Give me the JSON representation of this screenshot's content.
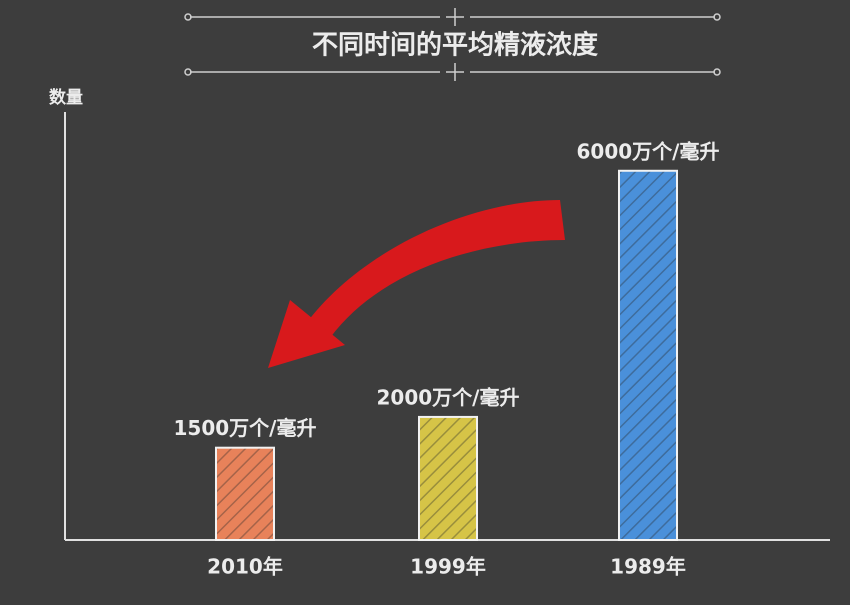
{
  "chart_data": {
    "type": "bar",
    "title": "不同时间的平均精液浓度",
    "y_label": "数量",
    "categories": [
      "2010年",
      "1999年",
      "1989年"
    ],
    "series": [
      {
        "values": [
          1500,
          2000,
          6000
        ],
        "value_labels": [
          "1500万个/毫升",
          "2000万个/毫升",
          "6000万个/毫升"
        ],
        "colors": [
          "#e8825a",
          "#d6c447",
          "#4a90da"
        ]
      }
    ],
    "ylim": [
      0,
      6500
    ]
  }
}
